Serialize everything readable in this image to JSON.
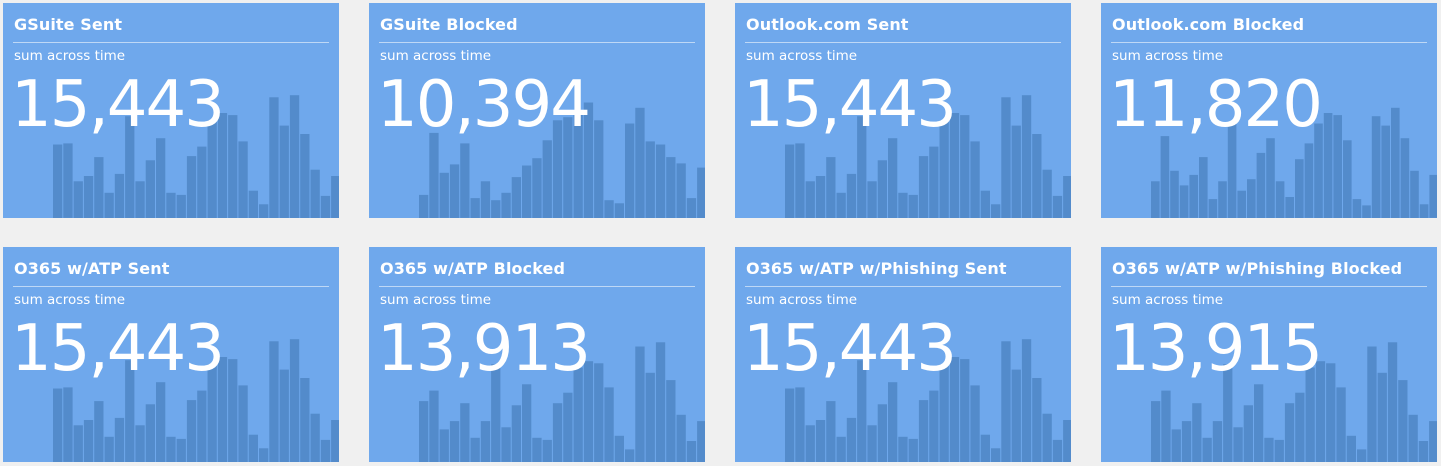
{
  "dashboard": {
    "tiles": [
      {
        "title": "GSuite Sent",
        "subtitle": "sum across time",
        "value": "15,443",
        "bars": [
          0.7,
          0.71,
          0.35,
          0.4,
          0.58,
          0.24,
          0.42,
          0.97,
          0.35,
          0.55,
          0.76,
          0.24,
          0.22,
          0.59,
          0.68,
          0.93,
          1.0,
          0.98,
          0.73,
          0.26,
          0.13,
          1.15,
          0.88,
          1.17,
          0.8,
          0.46,
          0.21,
          0.4
        ]
      },
      {
        "title": "GSuite Blocked",
        "subtitle": "sum across time",
        "value": "10,394",
        "bars": [
          0.22,
          0.81,
          0.43,
          0.51,
          0.71,
          0.19,
          0.35,
          0.17,
          0.24,
          0.39,
          0.5,
          0.57,
          0.74,
          0.93,
          0.96,
          1.0,
          1.1,
          0.93,
          0.17,
          0.14,
          0.9,
          1.05,
          0.73,
          0.7,
          0.58,
          0.52,
          0.19,
          0.48
        ]
      },
      {
        "title": "Outlook.com Sent",
        "subtitle": "sum across time",
        "value": "15,443",
        "bars": [
          0.7,
          0.71,
          0.35,
          0.4,
          0.58,
          0.24,
          0.42,
          0.97,
          0.35,
          0.55,
          0.76,
          0.24,
          0.22,
          0.59,
          0.68,
          0.93,
          1.0,
          0.98,
          0.73,
          0.26,
          0.13,
          1.15,
          0.88,
          1.17,
          0.8,
          0.46,
          0.21,
          0.4
        ]
      },
      {
        "title": "Outlook.com Blocked",
        "subtitle": "sum across time",
        "value": "11,820",
        "bars": [
          0.35,
          0.78,
          0.45,
          0.31,
          0.41,
          0.58,
          0.18,
          0.35,
          0.9,
          0.26,
          0.37,
          0.62,
          0.76,
          0.35,
          0.2,
          0.56,
          0.71,
          0.9,
          1.0,
          0.98,
          0.74,
          0.18,
          0.12,
          0.97,
          0.88,
          1.05,
          0.76,
          0.45,
          0.13,
          0.41
        ]
      },
      {
        "title": "O365 w/ATP Sent",
        "subtitle": "sum across time",
        "value": "15,443",
        "bars": [
          0.7,
          0.71,
          0.35,
          0.4,
          0.58,
          0.24,
          0.42,
          0.97,
          0.35,
          0.55,
          0.76,
          0.24,
          0.22,
          0.59,
          0.68,
          0.93,
          1.0,
          0.98,
          0.73,
          0.26,
          0.13,
          1.15,
          0.88,
          1.17,
          0.8,
          0.46,
          0.21,
          0.4
        ]
      },
      {
        "title": "O365 w/ATP Blocked",
        "subtitle": "sum across time",
        "value": "13,913",
        "bars": [
          0.58,
          0.68,
          0.31,
          0.39,
          0.56,
          0.23,
          0.39,
          0.93,
          0.33,
          0.54,
          0.74,
          0.23,
          0.21,
          0.56,
          0.66,
          0.9,
          0.96,
          0.94,
          0.71,
          0.25,
          0.12,
          1.1,
          0.85,
          1.14,
          0.78,
          0.45,
          0.2,
          0.39
        ]
      },
      {
        "title": "O365 w/ATP w/Phishing Sent",
        "subtitle": "sum across time",
        "value": "15,443",
        "bars": [
          0.7,
          0.71,
          0.35,
          0.4,
          0.58,
          0.24,
          0.42,
          0.97,
          0.35,
          0.55,
          0.76,
          0.24,
          0.22,
          0.59,
          0.68,
          0.93,
          1.0,
          0.98,
          0.73,
          0.26,
          0.13,
          1.15,
          0.88,
          1.17,
          0.8,
          0.46,
          0.21,
          0.4
        ]
      },
      {
        "title": "O365 w/ATP w/Phishing Blocked",
        "subtitle": "sum across time",
        "value": "13,915",
        "bars": [
          0.58,
          0.68,
          0.31,
          0.39,
          0.56,
          0.23,
          0.39,
          0.93,
          0.33,
          0.54,
          0.74,
          0.23,
          0.21,
          0.56,
          0.66,
          0.9,
          0.96,
          0.94,
          0.71,
          0.25,
          0.12,
          1.1,
          0.85,
          1.14,
          0.78,
          0.45,
          0.2,
          0.39
        ]
      }
    ]
  },
  "colors": {
    "tile_background": "#6fa8ec",
    "bar_fill": "#4f86c6",
    "text": "#ffffff",
    "page_background": "#f0f0f0"
  }
}
